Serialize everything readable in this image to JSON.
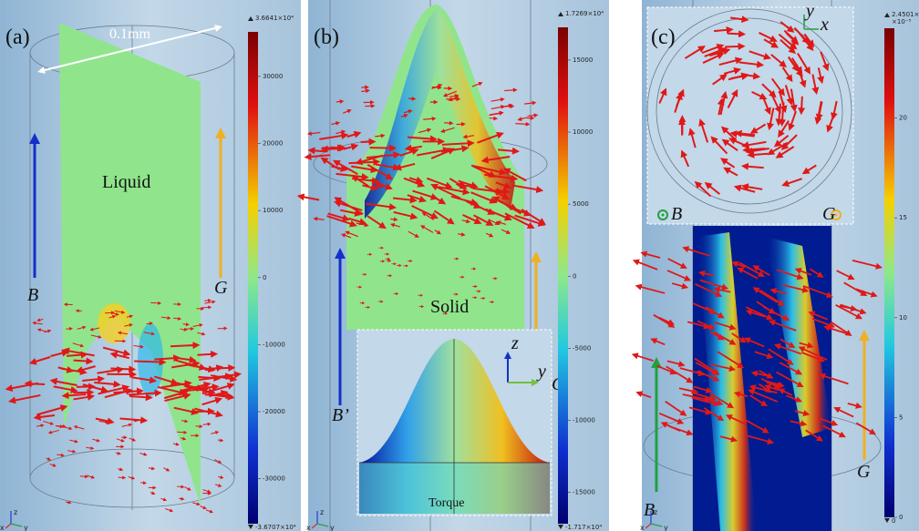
{
  "panels": [
    {
      "label": "(a)",
      "scale": "0.1mm",
      "region": "Liquid",
      "field": "B",
      "gravity": "G",
      "axes": [
        "z",
        "x",
        "y"
      ],
      "colorbar": {
        "max": {
          "value": 36641,
          "label": "3.6641×10⁴"
        },
        "min": {
          "value": -36707,
          "label": "-3.6707×10⁴"
        },
        "ticks": [
          30000,
          20000,
          10000,
          0,
          -10000,
          -20000,
          -30000
        ]
      }
    },
    {
      "label": "(b)",
      "region": "Solid",
      "field": "B’",
      "gravity": "G",
      "inset": {
        "z": "z",
        "y": "y",
        "caption": "Torque"
      },
      "axes": [
        "z",
        "x",
        "y"
      ],
      "colorbar": {
        "max": {
          "value": 17269,
          "label": "1.7269×10⁴"
        },
        "min": {
          "value": -17170,
          "label": "-1.717×10⁴"
        },
        "ticks": [
          15000,
          10000,
          5000,
          0,
          -5000,
          -10000,
          -15000
        ]
      }
    },
    {
      "label": "(c)",
      "inset": {
        "y": "y",
        "x": "x",
        "field": "B",
        "gravity": "G"
      },
      "field": "B",
      "gravity": "G",
      "axes": [
        "z",
        "x",
        "y"
      ],
      "colorbar": {
        "max": {
          "value": 24.501,
          "label": "2.4501×10"
        },
        "unit": "×10⁻⁵",
        "min": {
          "value": 0,
          "label": "0"
        },
        "ticks": [
          20,
          15,
          10,
          5,
          0
        ]
      }
    }
  ]
}
